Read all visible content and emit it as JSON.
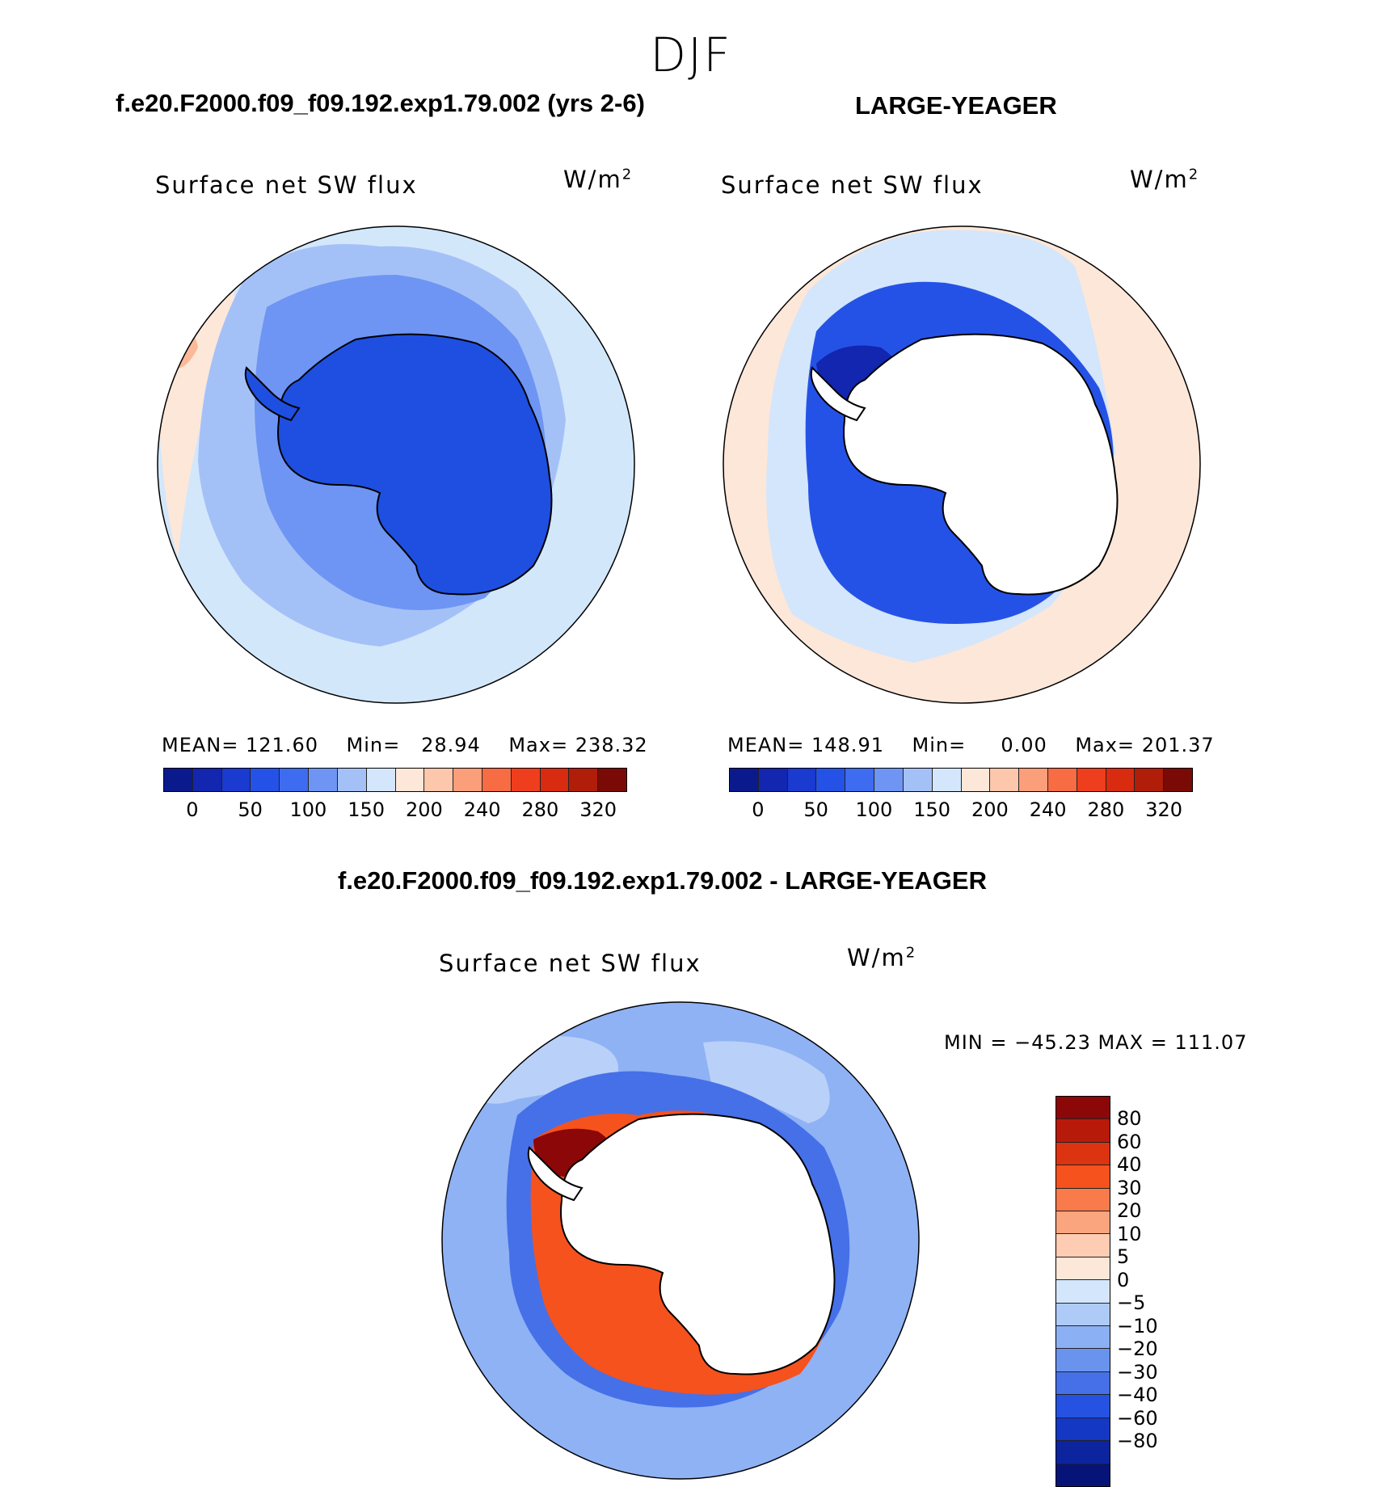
{
  "title": "DJF",
  "panels": [
    {
      "case": "f.e20.F2000.f09_f09.192.exp1.79.002 (yrs 2-6)",
      "variable": "Surface net SW flux",
      "units_base": "W/m",
      "units_exp": "2",
      "stats": {
        "mean_label": "MEAN=",
        "mean": "121.60",
        "min_label": "Min=",
        "min": "28.94",
        "max_label": "Max=",
        "max": "238.32"
      },
      "ocean_color": "#d3e7fb",
      "continent_color": "#1e4fe0"
    },
    {
      "case": "LARGE-YEAGER",
      "variable": "Surface net SW flux",
      "units_base": "W/m",
      "units_exp": "2",
      "stats": {
        "mean_label": "MEAN=",
        "mean": "148.91",
        "min_label": "Min=",
        "min": "0.00",
        "max_label": "Max=",
        "max": "201.37"
      },
      "ocean_color": "#fde7d9",
      "continent_color": "#ffffff"
    }
  ],
  "colorbar_abs": {
    "colors": [
      "#0a1a8c",
      "#1226b0",
      "#1a3ad0",
      "#2552e6",
      "#3e6cf0",
      "#6e95f3",
      "#a4c1f7",
      "#d3e6fb",
      "#fde7d9",
      "#fcc7ab",
      "#fb9e7a",
      "#f76c43",
      "#ee3e1d",
      "#d92b0f",
      "#b01e0a",
      "#7a0a05"
    ],
    "ticks": [
      "0",
      "50",
      "100",
      "150",
      "200",
      "240",
      "280",
      "320"
    ]
  },
  "difference": {
    "case": "f.e20.F2000.f09_f09.192.exp1.79.002 - LARGE-YEAGER",
    "variable": "Surface net SW flux",
    "units_base": "W/m",
    "units_exp": "2",
    "minmax": "MIN = −45.23 MAX = 111.07",
    "ocean_color": "#8fb2f4",
    "continent_color": "#ffffff",
    "colorbar": {
      "colors": [
        "#8c0707",
        "#b81a0a",
        "#dc3310",
        "#f5521e",
        "#f97a4a",
        "#fba57e",
        "#fdccb2",
        "#fde7d9",
        "#d3e6fb",
        "#aecbf7",
        "#8bb0f3",
        "#6a93ee",
        "#4670e8",
        "#2552e0",
        "#1438c4",
        "#0c249e",
        "#061478"
      ],
      "ticks": [
        "80",
        "60",
        "40",
        "30",
        "20",
        "10",
        "5",
        "0",
        "−5",
        "−10",
        "−20",
        "−30",
        "−40",
        "−60",
        "−80"
      ]
    }
  }
}
